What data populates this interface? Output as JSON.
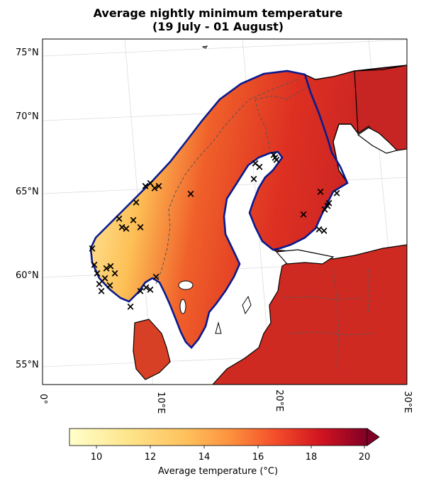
{
  "title_line1": "Average nightly minimum temperature",
  "title_line2": "(19 July - 01 August)",
  "lat_labels": [
    "75°N",
    "70°N",
    "65°N",
    "60°N",
    "55°N"
  ],
  "lon_labels": [
    "0°",
    "10°E",
    "20°E",
    "30°E"
  ],
  "colorbar": {
    "label": "Average temperature (°C)",
    "ticks": [
      "10",
      "12",
      "14",
      "16",
      "18",
      "20"
    ],
    "min": 9,
    "max": 20,
    "extend": "max",
    "colormap": "YlOrRd"
  },
  "colors": {
    "sea": "#ffffff",
    "coast": "#000000",
    "border_blue": "#0a1a8c",
    "cold": "#fdf3b0",
    "mid": "#f16a22",
    "warm": "#a51525"
  },
  "markers": {
    "symbol": "×",
    "count": 45
  }
}
